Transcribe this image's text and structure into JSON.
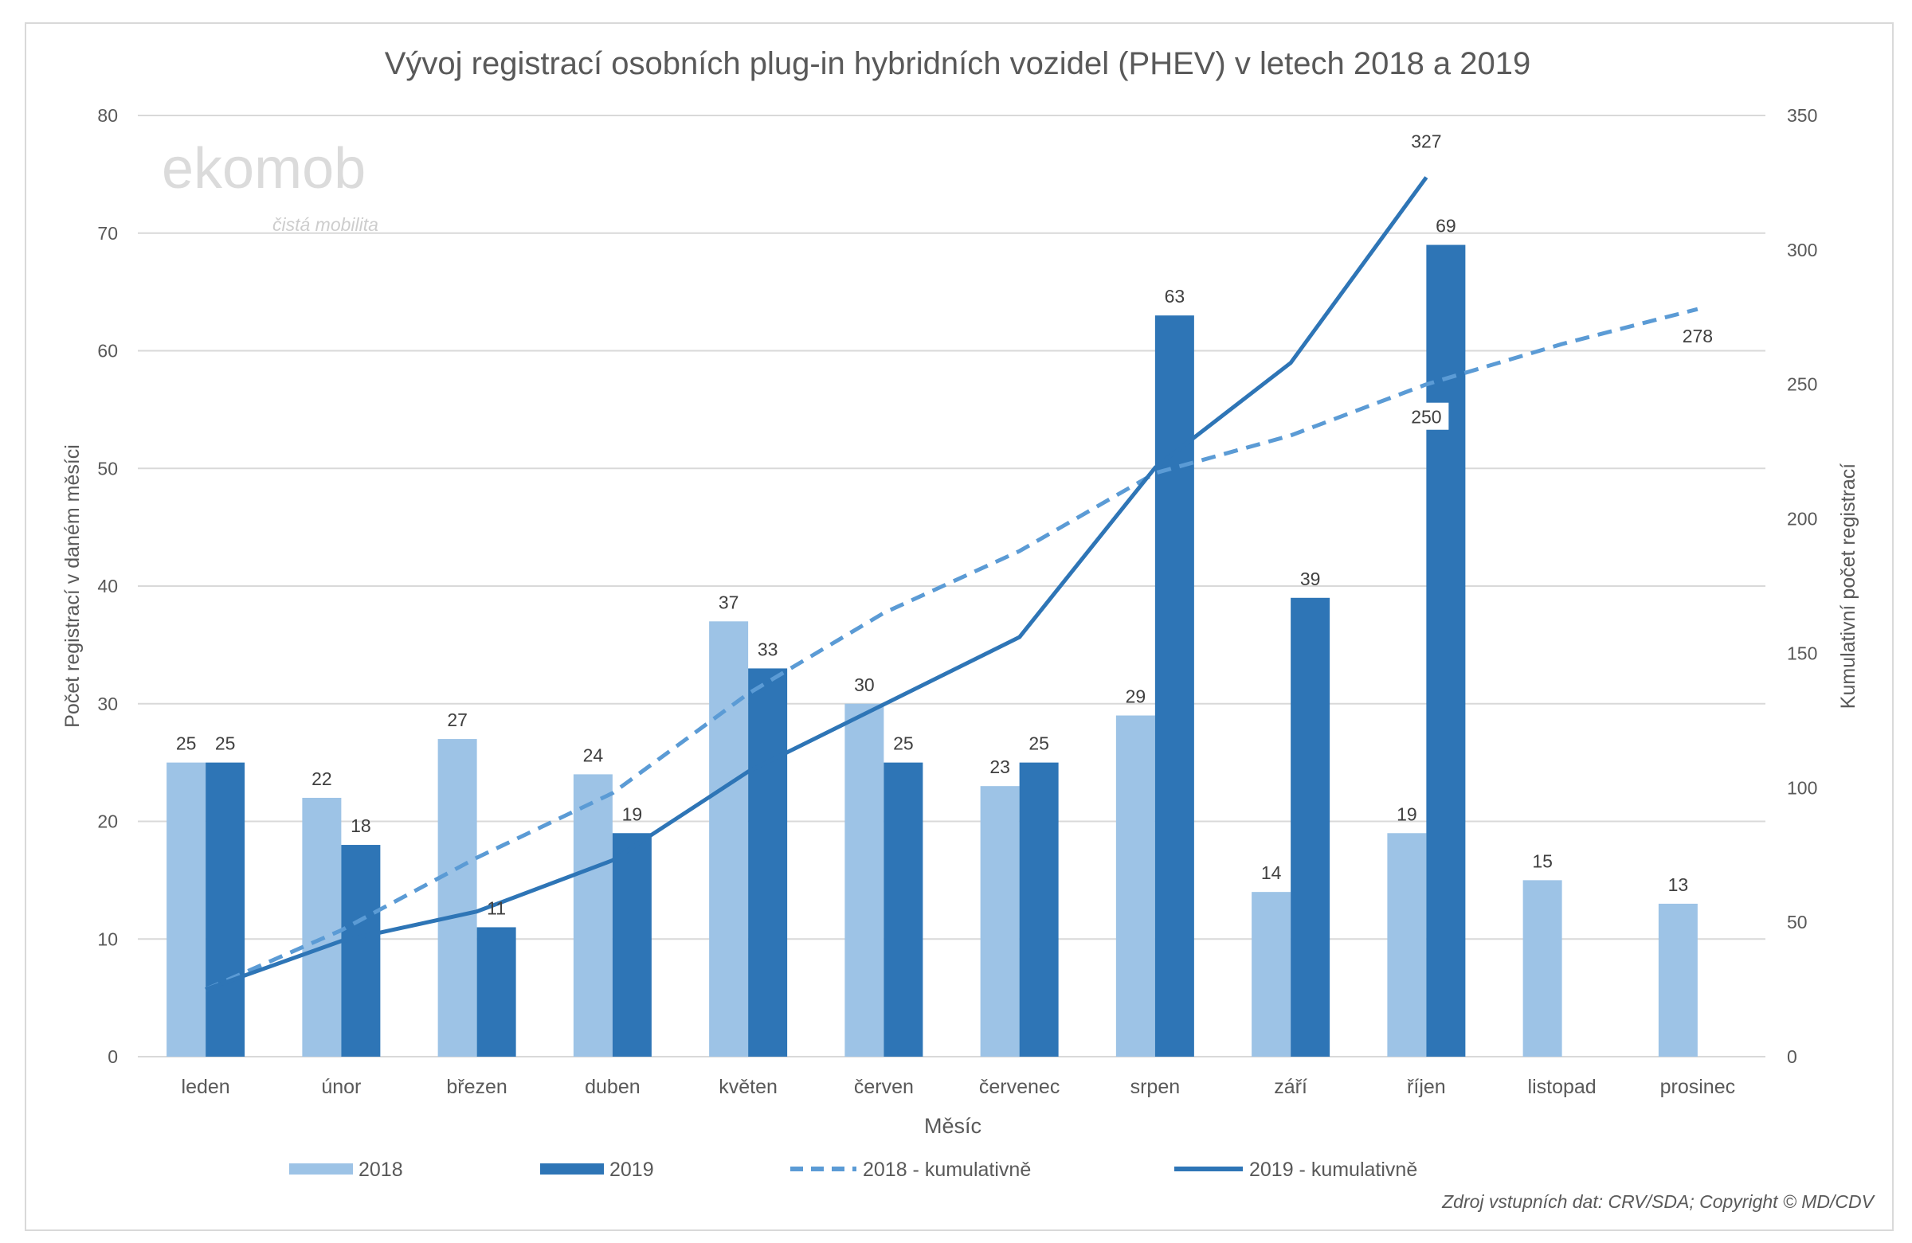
{
  "chart_data": {
    "type": "bar",
    "title": "Vývoj registrací osobních plug-in hybridních vozidel (PHEV) v letech 2018 a 2019",
    "xlabel": "Měsíc",
    "ylabel": "Počet registrací v daném měsíci",
    "y2label": "Kumulativní počet registrací",
    "ylim": [
      0,
      80
    ],
    "y2lim": [
      0,
      350
    ],
    "yticks": [
      0,
      10,
      20,
      30,
      40,
      50,
      60,
      70,
      80
    ],
    "y2ticks": [
      0,
      50,
      100,
      150,
      200,
      250,
      300,
      350
    ],
    "grid": true,
    "legend_position": "bottom",
    "categories": [
      "leden",
      "únor",
      "březen",
      "duben",
      "květen",
      "červen",
      "červenec",
      "srpen",
      "září",
      "říjen",
      "listopad",
      "prosinec"
    ],
    "series": [
      {
        "name": "2018",
        "type": "bar",
        "axis": "left",
        "color": "#9dc3e6",
        "values": [
          25,
          22,
          27,
          24,
          37,
          30,
          23,
          29,
          14,
          19,
          15,
          13
        ]
      },
      {
        "name": "2019",
        "type": "bar",
        "axis": "left",
        "color": "#2e75b6",
        "values": [
          25,
          18,
          11,
          19,
          33,
          25,
          25,
          63,
          39,
          69,
          null,
          null
        ]
      },
      {
        "name": "2018 - kumulativně",
        "type": "line",
        "style": "dashed",
        "axis": "right",
        "color": "#5b9bd5",
        "values": [
          25,
          47,
          74,
          98,
          135,
          165,
          188,
          217,
          231,
          250,
          265,
          278
        ],
        "labels": [
          "",
          "",
          "",
          "",
          "",
          "",
          "",
          "",
          "",
          "250",
          "",
          "278"
        ]
      },
      {
        "name": "2019 - kumulativně",
        "type": "line",
        "style": "solid",
        "axis": "right",
        "color": "#2e75b6",
        "values": [
          25,
          43,
          54,
          73,
          106,
          131,
          156,
          219,
          258,
          327,
          null,
          null
        ],
        "labels": [
          "",
          "",
          "",
          "",
          "",
          "",
          "",
          "",
          "",
          "327",
          "",
          ""
        ]
      }
    ]
  },
  "logo": {
    "text": "ekomob",
    "tagline": "čistá mobilita"
  },
  "source": "Zdroj vstupních dat: CRV/SDA; Copyright © MD/CDV"
}
